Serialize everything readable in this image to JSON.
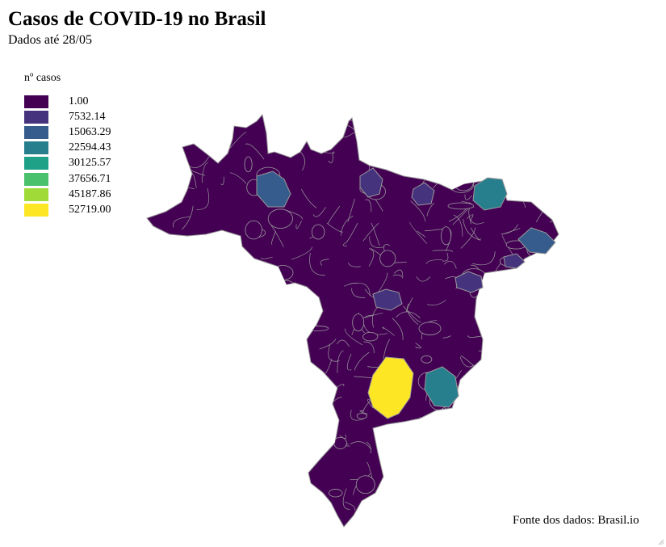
{
  "header": {
    "title": "Casos de COVID-19 no Brasil",
    "subtitle": "Dados até 28/05"
  },
  "legend": {
    "title": "nº casos",
    "items": [
      {
        "label": "1.00",
        "color": "#440154"
      },
      {
        "label": "7532.14",
        "color": "#46337e"
      },
      {
        "label": "15063.29",
        "color": "#365c8d"
      },
      {
        "label": "22594.43",
        "color": "#277f8e"
      },
      {
        "label": "30125.57",
        "color": "#1fa187"
      },
      {
        "label": "37656.71",
        "color": "#4ac16d"
      },
      {
        "label": "45187.86",
        "color": "#a0da39"
      },
      {
        "label": "52719.00",
        "color": "#fde725"
      }
    ]
  },
  "map": {
    "base_color": "#440154",
    "border_color": "#999999",
    "highlighted_regions": [
      {
        "region": "northwest-city",
        "cases_bin": "15063.29",
        "color": "#365c8d"
      },
      {
        "region": "north-coast-city-a",
        "cases_bin": "7532.14",
        "color": "#46337e"
      },
      {
        "region": "north-coast-city-b",
        "cases_bin": "7532.14",
        "color": "#46337e"
      },
      {
        "region": "northeast-city-a",
        "cases_bin": "22594.43",
        "color": "#277f8e"
      },
      {
        "region": "northeast-city-b",
        "cases_bin": "15063.29",
        "color": "#365c8d"
      },
      {
        "region": "northeast-city-c",
        "cases_bin": "7532.14",
        "color": "#46337e"
      },
      {
        "region": "east-coast-city",
        "cases_bin": "7532.14",
        "color": "#46337e"
      },
      {
        "region": "central-city",
        "cases_bin": "7532.14",
        "color": "#46337e"
      },
      {
        "region": "southeast-city-a",
        "cases_bin": "52719.00",
        "color": "#fde725"
      },
      {
        "region": "southeast-city-b",
        "cases_bin": "22594.43",
        "color": "#277f8e"
      }
    ]
  },
  "footer": {
    "source": "Fonte dos dados: Brasil.io"
  }
}
